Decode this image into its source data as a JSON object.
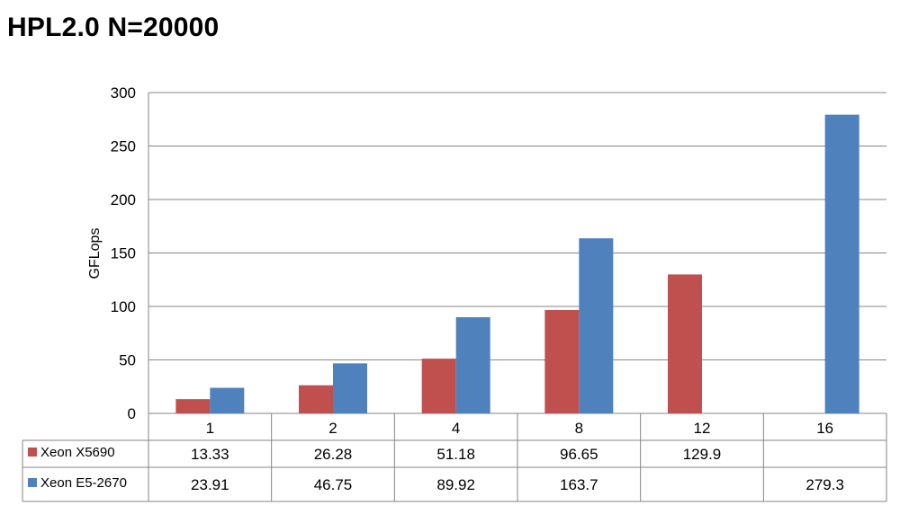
{
  "chart_data": {
    "type": "bar",
    "title": "HPL2.0 N=20000",
    "xlabel": "",
    "ylabel": "GFLops",
    "categories": [
      "1",
      "2",
      "4",
      "8",
      "12",
      "16"
    ],
    "ylim": [
      0,
      300
    ],
    "yticks": [
      0,
      50,
      100,
      150,
      200,
      250,
      300
    ],
    "grid": true,
    "legend_placement": "data-table-left",
    "series": [
      {
        "name": "Xeon X5690",
        "color": "#c0504d",
        "values": [
          13.33,
          26.28,
          51.18,
          96.65,
          129.9,
          null
        ],
        "labels": [
          "13.33",
          "26.28",
          "51.18",
          "96.65",
          "129.9",
          ""
        ]
      },
      {
        "name": "Xeon E5-2670",
        "color": "#4f81bd",
        "values": [
          23.91,
          46.75,
          89.92,
          163.7,
          null,
          279.3
        ],
        "labels": [
          "23.91",
          "46.75",
          "89.92",
          "163.7",
          "",
          "279.3"
        ]
      }
    ]
  }
}
